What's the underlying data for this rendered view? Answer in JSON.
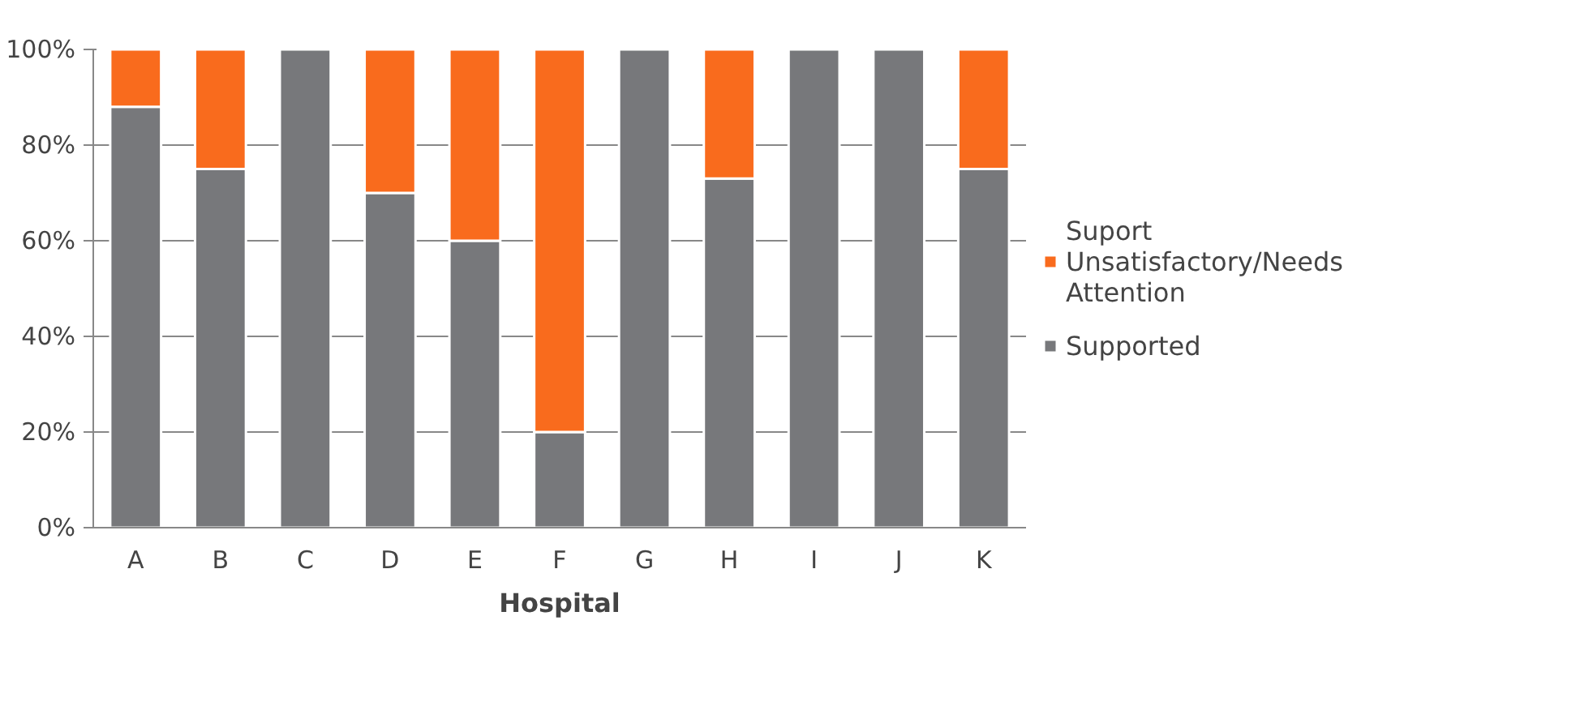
{
  "chart_data": {
    "type": "bar",
    "stacked": true,
    "xlabel": "Hospital",
    "categories": [
      "A",
      "B",
      "C",
      "D",
      "E",
      "F",
      "G",
      "H",
      "I",
      "J",
      "K"
    ],
    "series": [
      {
        "name": "Supported",
        "color": "#77787b",
        "values": [
          88,
          75,
          100,
          70,
          60,
          20,
          100,
          73,
          100,
          100,
          75
        ]
      },
      {
        "name": "Suport Unsatisfactory/Needs Attention",
        "color": "#f96b1d",
        "values": [
          12,
          25,
          0,
          30,
          40,
          80,
          0,
          27,
          0,
          0,
          25
        ]
      }
    ],
    "ylim": [
      0,
      100
    ],
    "yticks": [
      {
        "value": 0,
        "label": "0%"
      },
      {
        "value": 20,
        "label": "20%"
      },
      {
        "value": 40,
        "label": "40%"
      },
      {
        "value": 60,
        "label": "60%"
      },
      {
        "value": 80,
        "label": "80%"
      },
      {
        "value": 100,
        "label": "100%"
      }
    ],
    "grid": "y",
    "legend": "right"
  }
}
